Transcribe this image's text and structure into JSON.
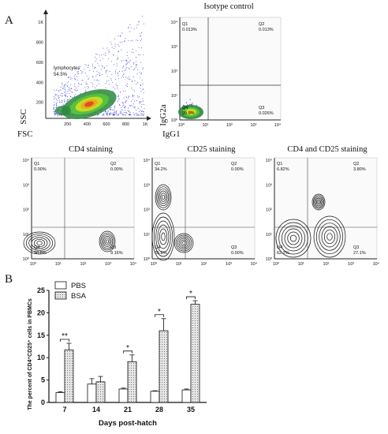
{
  "panels": {
    "a": "A",
    "b": "B"
  },
  "top_left": {
    "xlabel": "FSC",
    "ylabel": "SSC",
    "xticks": [
      "200",
      "400",
      "600",
      "800",
      "1K"
    ],
    "yticks": [
      "200",
      "400",
      "600",
      "800",
      "1K"
    ],
    "gate_name": "lymphocytes",
    "gate_pct": "54.5%"
  },
  "isotype": {
    "title": "Isotype control",
    "xlabel": "IgG1",
    "ylabel": "IgG2a",
    "quadrants": {
      "Q1": "0.013%",
      "Q2": "0.013%",
      "Q3": "0.026%",
      "Q4": "99.9%"
    }
  },
  "contours": [
    {
      "title": "CD4 staining",
      "quadrants": {
        "Q1": "0.00%",
        "Q2": "0.00%",
        "Q3": "9.16%",
        "Q4": "90.8%"
      }
    },
    {
      "title": "CD25 staining",
      "quadrants": {
        "Q1": "34.2%",
        "Q2": "0.00%",
        "Q3": "0.00%",
        "Q4": "65.8%"
      }
    },
    {
      "title": "CD4 and CD25 staining",
      "quadrants": {
        "Q1": "6.82%",
        "Q2": "3.80%",
        "Q3": "27.1%",
        "Q4": "62.2%"
      }
    }
  ],
  "log_ticks": [
    "10⁰",
    "10¹",
    "10²",
    "10³",
    "10⁴"
  ],
  "chart_data": {
    "type": "bar",
    "categories": [
      "7",
      "14",
      "21",
      "28",
      "35"
    ],
    "series": [
      {
        "name": "PBS",
        "values": [
          2.2,
          4.1,
          3.0,
          2.5,
          2.8
        ],
        "errors": [
          0.2,
          1.2,
          0.2,
          0.1,
          0.2
        ]
      },
      {
        "name": "BSA",
        "values": [
          11.7,
          4.6,
          9.1,
          16.0,
          21.9
        ],
        "errors": [
          1.5,
          1.2,
          1.5,
          2.7,
          0.8
        ]
      }
    ],
    "xlabel": "Days post-hatch",
    "ylabel": "The percent of CD4⁺CD25⁺ cells in PBMCs",
    "ylim": [
      0,
      25
    ],
    "yticks": [
      "0",
      "5",
      "10",
      "15",
      "20",
      "25"
    ],
    "significance": [
      "**",
      "",
      "*",
      "*",
      "*"
    ],
    "legend_position": "top-left"
  },
  "colors": {
    "axis": "#222222",
    "dots": "#3a3ad8",
    "pbs": "#ffffff",
    "bsa": "#e6e6e6"
  }
}
